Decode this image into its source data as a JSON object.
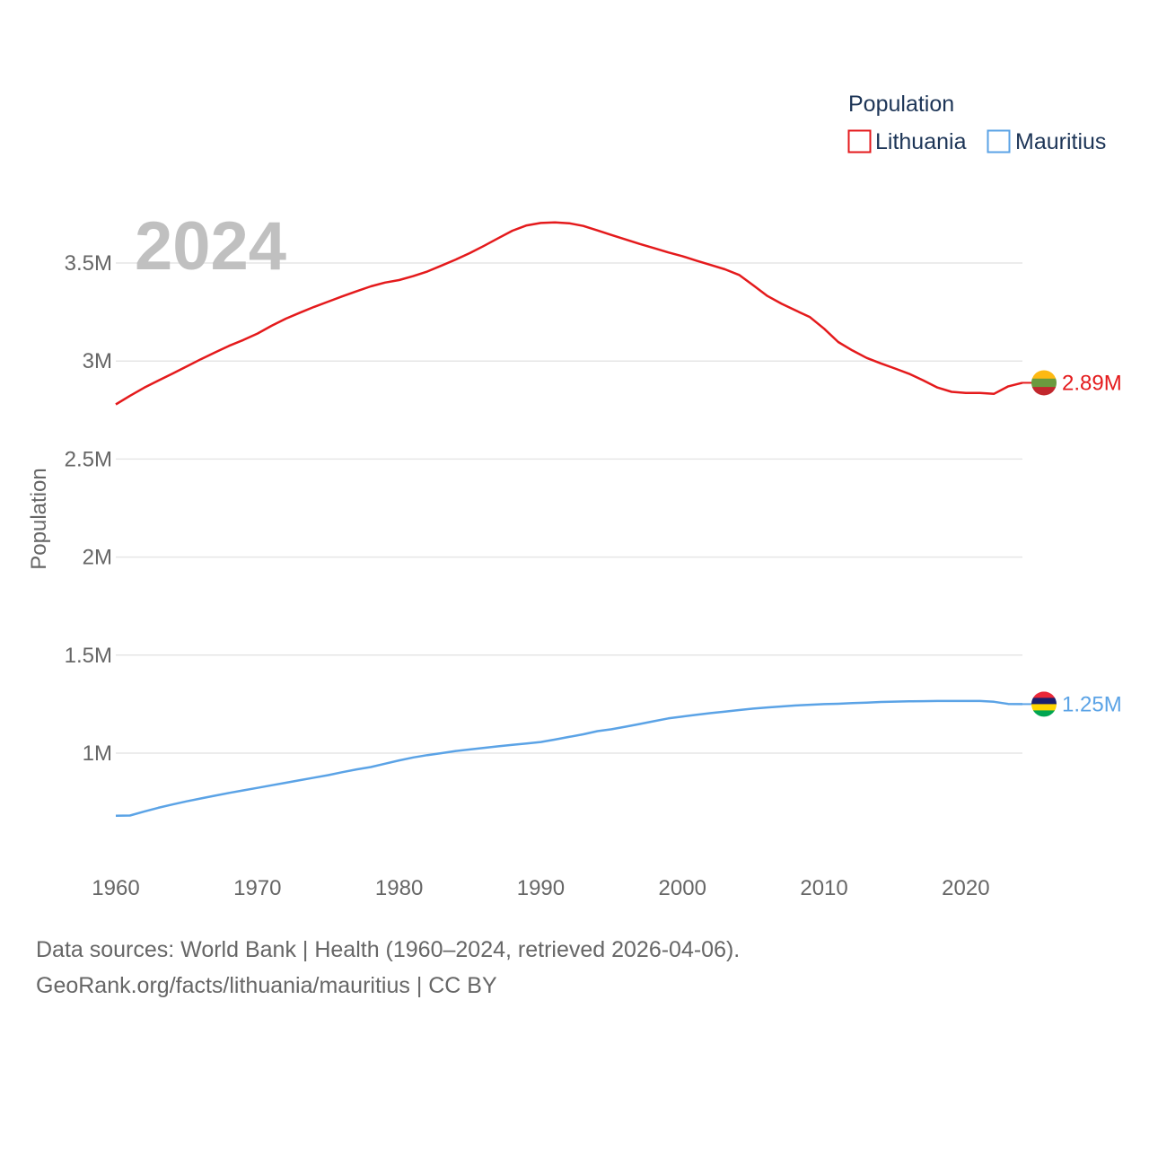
{
  "chart_data": {
    "type": "line",
    "ylabel": "Population",
    "year_label": "2024",
    "legend_title": "Population",
    "xlim": [
      1960,
      2024
    ],
    "ylim": [
      500000,
      3800000
    ],
    "x_ticks": [
      1960,
      1970,
      1980,
      1990,
      2000,
      2010,
      2020
    ],
    "y_ticks": [
      {
        "value": 1000000,
        "label": "1M"
      },
      {
        "value": 1500000,
        "label": "1.5M"
      },
      {
        "value": 2000000,
        "label": "2M"
      },
      {
        "value": 2500000,
        "label": "2.5M"
      },
      {
        "value": 3000000,
        "label": "3M"
      },
      {
        "value": 3500000,
        "label": "3.5M"
      }
    ],
    "x": [
      1960,
      1961,
      1962,
      1963,
      1964,
      1965,
      1966,
      1967,
      1968,
      1969,
      1970,
      1971,
      1972,
      1973,
      1974,
      1975,
      1976,
      1977,
      1978,
      1979,
      1980,
      1981,
      1982,
      1983,
      1984,
      1985,
      1986,
      1987,
      1988,
      1989,
      1990,
      1991,
      1992,
      1993,
      1994,
      1995,
      1996,
      1997,
      1998,
      1999,
      2000,
      2001,
      2002,
      2003,
      2004,
      2005,
      2006,
      2007,
      2008,
      2009,
      2010,
      2011,
      2012,
      2013,
      2014,
      2015,
      2016,
      2017,
      2018,
      2019,
      2020,
      2021,
      2022,
      2023,
      2024
    ],
    "series": [
      {
        "name": "Lithuania",
        "color": "#e41a1c",
        "end_label": "2.89M",
        "values": [
          2779000,
          2823000,
          2864000,
          2900000,
          2936000,
          2972000,
          3009000,
          3044000,
          3078000,
          3107000,
          3140000,
          3180000,
          3216000,
          3247000,
          3276000,
          3303000,
          3330000,
          3356000,
          3381000,
          3400000,
          3413000,
          3433000,
          3457000,
          3487000,
          3518000,
          3551000,
          3588000,
          3627000,
          3665000,
          3692000,
          3704000,
          3707000,
          3703000,
          3689000,
          3666000,
          3643000,
          3620000,
          3597000,
          3576000,
          3554000,
          3535000,
          3512000,
          3490000,
          3468000,
          3439000,
          3386000,
          3332000,
          3292000,
          3258000,
          3224000,
          3165000,
          3097000,
          3054000,
          3016000,
          2988000,
          2962000,
          2935000,
          2901000,
          2865000,
          2843000,
          2837000,
          2837000,
          2833000,
          2871000,
          2889000
        ]
      },
      {
        "name": "Mauritius",
        "color": "#5ba3e6",
        "end_label": "1.25M",
        "values": [
          681000,
          682000,
          702000,
          721000,
          738000,
          754000,
          769000,
          783000,
          797000,
          810000,
          823000,
          836000,
          849000,
          862000,
          875000,
          888000,
          903000,
          917000,
          929000,
          946000,
          963000,
          978000,
          990000,
          1000000,
          1011000,
          1019000,
          1027000,
          1035000,
          1042000,
          1049000,
          1057000,
          1069000,
          1083000,
          1096000,
          1112000,
          1122000,
          1135000,
          1149000,
          1163000,
          1177000,
          1187000,
          1196000,
          1204000,
          1212000,
          1220000,
          1227000,
          1233000,
          1238000,
          1243000,
          1247000,
          1250000,
          1252000,
          1255000,
          1258000,
          1261000,
          1263000,
          1264000,
          1265000,
          1266000,
          1266000,
          1266000,
          1266000,
          1262000,
          1251000,
          1250000
        ]
      }
    ]
  },
  "footer": {
    "line1": "Data sources: World Bank | Health (1960–2024, retrieved 2026-04-06).",
    "line2": "GeoRank.org/facts/lithuania/mauritius | CC BY"
  },
  "flags": {
    "lithuania_colors": [
      "#fdb913",
      "#6a9a3e",
      "#c1272d"
    ],
    "mauritius_colors": [
      "#ea2839",
      "#1a206d",
      "#ffd500",
      "#00a551"
    ]
  }
}
